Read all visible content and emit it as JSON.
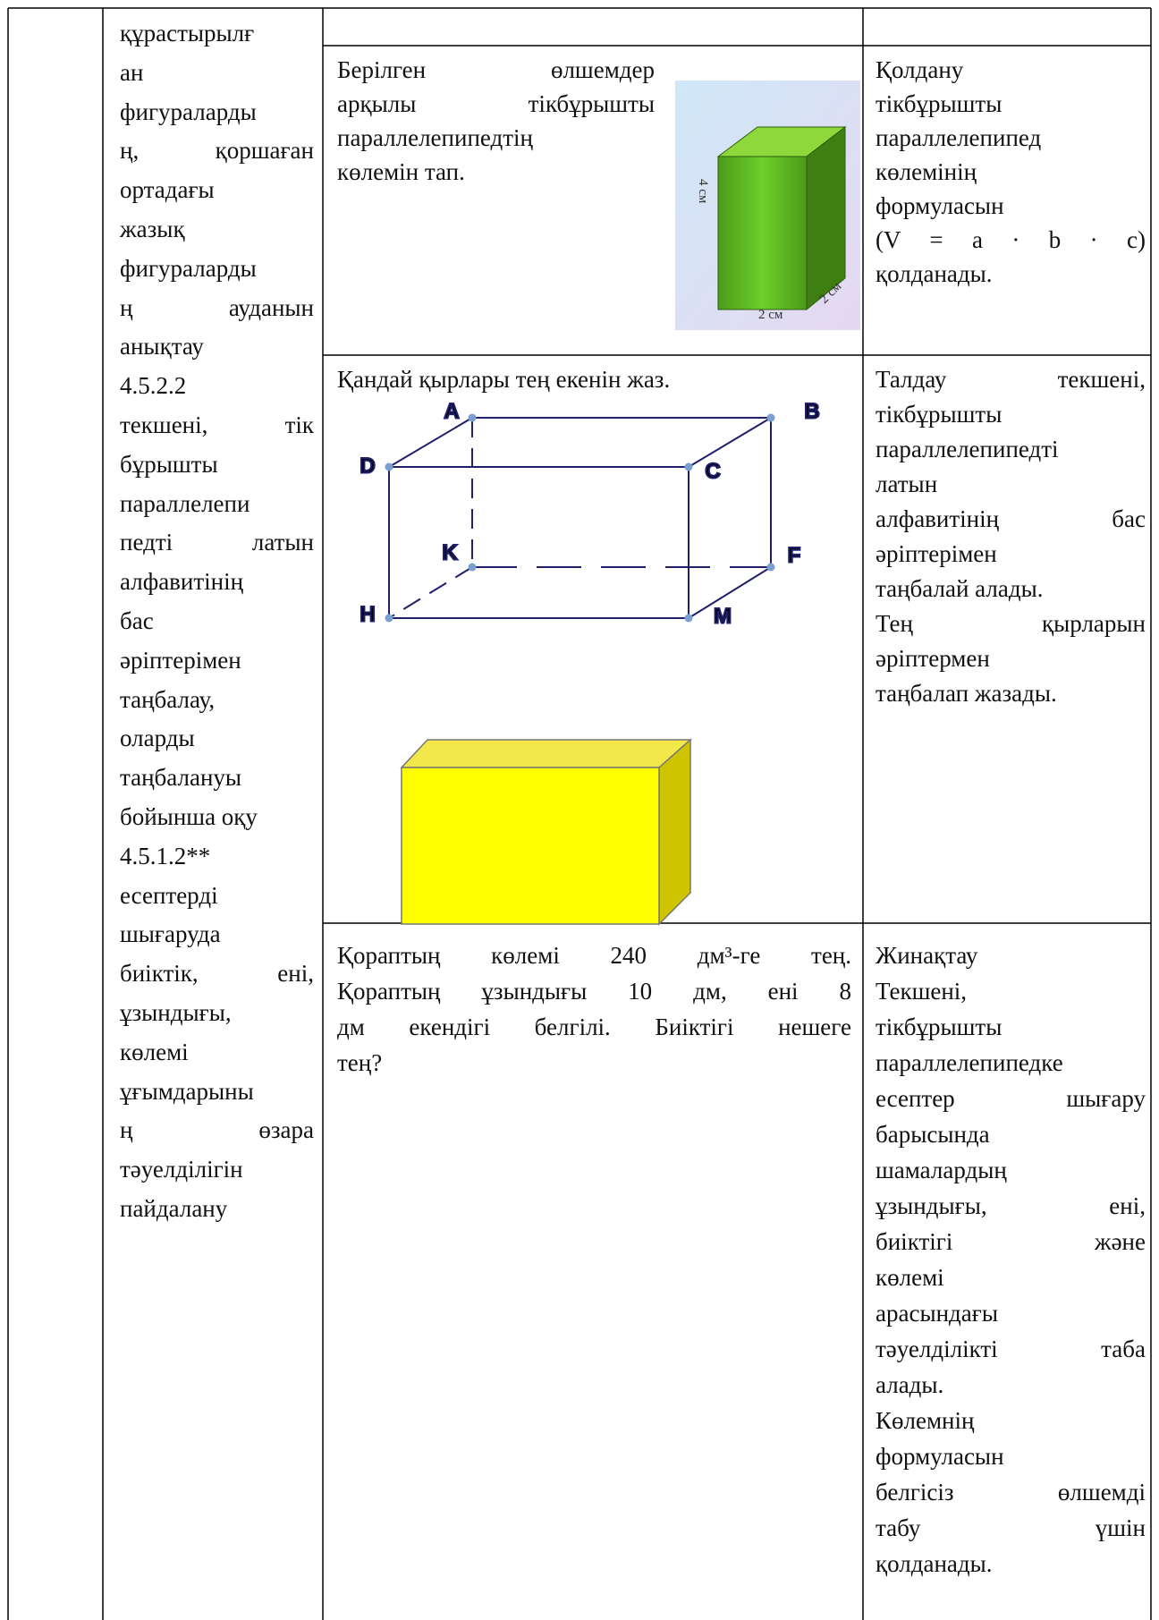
{
  "objectives": {
    "paragraphs": [
      [
        "құрастырылғ",
        "ан",
        "фигураларды",
        "ң, қоршаған",
        "ортадағы",
        "жазық",
        "фигураларды",
        "ң ауданын",
        "анықтау"
      ],
      [
        "4.5.2.2",
        "текшені, тік",
        "бұрышты",
        "параллелепи",
        "педті латын",
        "алфавитінің",
        "бас",
        "әріптерімен",
        "таңбалау,",
        "оларды",
        "таңбалануы",
        "бойынша оқу"
      ],
      [
        "4.5.1.2**",
        "есептерді",
        "шығаруда",
        "биіктік, ені,",
        "ұзындығы,",
        "көлемі",
        "ұғымдарыны",
        "ң өзара",
        "тәуелділігін",
        "пайдалану"
      ]
    ]
  },
  "rows": [
    {
      "task": [
        [
          "Берілген өлшемдер",
          "арқылы тікбұрышты",
          "параллелепипедтің",
          "көлемін тап."
        ]
      ],
      "criteria": [
        [
          "Қолдану",
          "тікбұрышты",
          "параллелепипед",
          "көлемінің",
          "формуласын",
          "(V = a · b · c)",
          "қолданады."
        ]
      ],
      "figure_labels": [
        "4 см",
        "2 см",
        "2 см"
      ]
    },
    {
      "task": [
        [
          "Қандай қырлары тең екенін жаз."
        ]
      ],
      "criteria": [
        [
          "Талдау текшені,",
          "тікбұрышты",
          "параллелепипедті",
          "латын",
          "алфавитінің бас",
          "әріптерімен",
          "таңбалай алады."
        ],
        [
          "Тең қырларын",
          "әріптермен",
          "таңбалап жазады."
        ]
      ],
      "figure_labels": [
        "A",
        "B",
        "D",
        "C",
        "K",
        "F",
        "H",
        "M"
      ]
    },
    {
      "task": [
        [
          "Қораптың көлемі 240 дм³-ге тең.",
          "Қораптың ұзындығы 10 дм, ені 8",
          "дм екендігі белгілі. Биіктігі нешеге",
          "тең?"
        ]
      ],
      "criteria": [
        [
          "Жинақтау"
        ],
        [
          "Текшені,",
          "тікбұрышты",
          "параллелепипедке",
          "есептер шығару",
          "барысында",
          "шамалардың",
          "ұзындығы, ені,",
          "биіктігі және",
          "көлемі",
          "арасындағы",
          "тәуелділікті таба",
          "алады."
        ],
        [
          "Көлемнің",
          "формуласын",
          "белгісіз өлшемді",
          "табу үшін",
          "қолданады."
        ]
      ]
    }
  ]
}
